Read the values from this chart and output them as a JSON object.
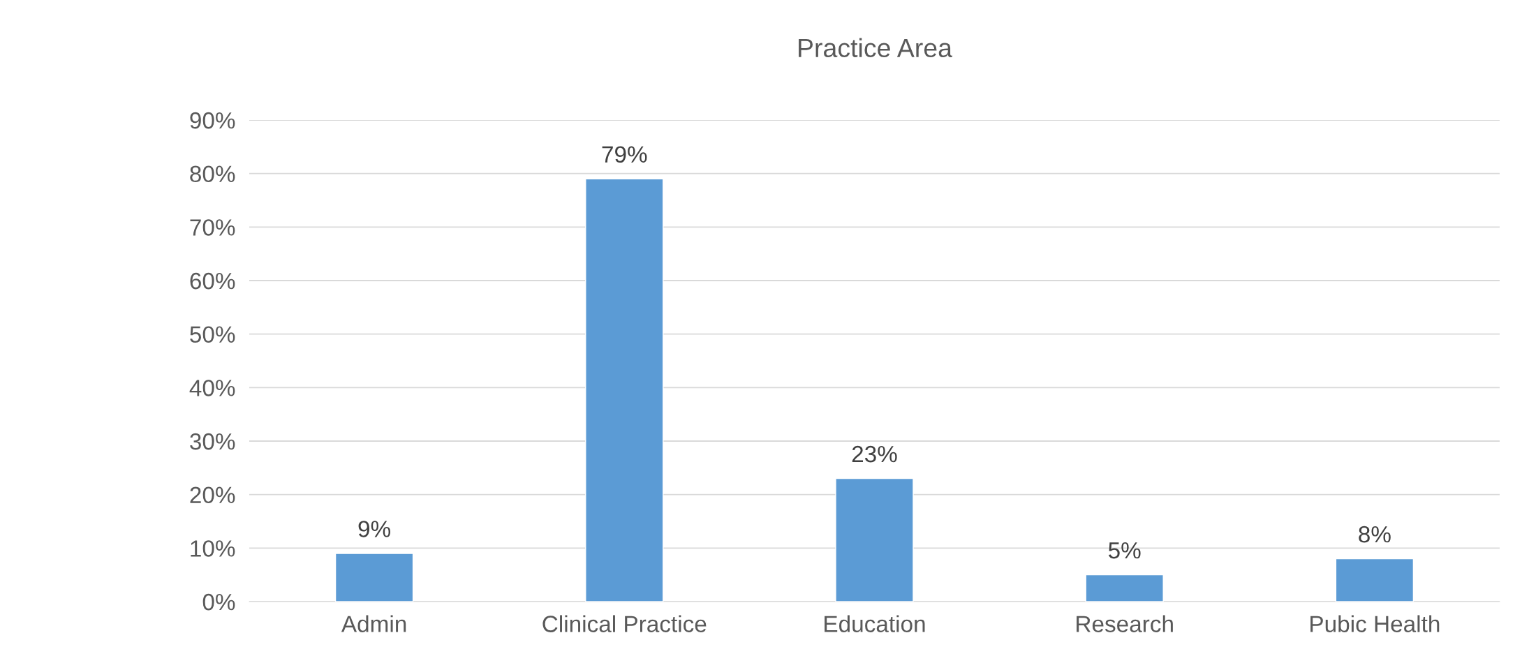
{
  "chart_data": {
    "type": "bar",
    "title": "Practice Area",
    "categories": [
      "Admin",
      "Clinical Practice",
      "Education",
      "Research",
      "Pubic Health"
    ],
    "values": [
      9,
      79,
      23,
      5,
      8
    ],
    "value_labels": [
      "9%",
      "79%",
      "23%",
      "5%",
      "8%"
    ],
    "color": "#5b9bd5",
    "ylim": [
      0,
      90
    ],
    "yticks": [
      {
        "value": 0,
        "label": "0%"
      },
      {
        "value": 10,
        "label": "10%"
      },
      {
        "value": 20,
        "label": "20%"
      },
      {
        "value": 30,
        "label": "30%"
      },
      {
        "value": 40,
        "label": "40%"
      },
      {
        "value": 50,
        "label": "50%"
      },
      {
        "value": 60,
        "label": "60%"
      },
      {
        "value": 70,
        "label": "70%"
      },
      {
        "value": 80,
        "label": "80%"
      },
      {
        "value": 90,
        "label": "90%"
      }
    ],
    "grid": "y",
    "legend": false
  }
}
